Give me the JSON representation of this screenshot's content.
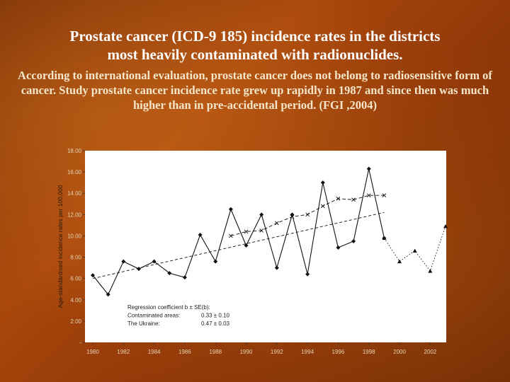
{
  "slide": {
    "title_line1": "Prostate cancer (ICD-9 185) incidence rates in the districts",
    "title_line2": "most heavily contaminated with radionuclides.",
    "subtitle": "According to international evaluation, prostate cancer does not belong to radiosensitive form of cancer. Study prostate cancer incidence rate grew up rapidly in 1987 and since then was much higher than in pre-accidental period. (FGI ,2004)"
  },
  "chart_data": {
    "type": "line",
    "ylabel": "Age-standardised incidence rates per 100,000",
    "xlim": [
      1980,
      2003
    ],
    "ylim": [
      0,
      18
    ],
    "y_ticks": [
      0,
      2,
      4,
      6,
      8,
      10,
      12,
      14,
      16,
      18
    ],
    "y_tick_labels": [
      "-",
      "2.00",
      "4.00",
      "6.00",
      "8.00",
      "10.00",
      "12.00",
      "14.00",
      "16.00",
      "18.00"
    ],
    "x_ticks": [
      1980,
      1982,
      1984,
      1986,
      1988,
      1990,
      1992,
      1994,
      1996,
      1998,
      2000,
      2002
    ],
    "series": [
      {
        "name": "Contaminated areas",
        "style": "solid-diamond",
        "x": [
          1980,
          1981,
          1982,
          1983,
          1984,
          1985,
          1986,
          1987,
          1988,
          1989,
          1990,
          1991,
          1992,
          1993,
          1994,
          1995,
          1996,
          1997,
          1998,
          1999
        ],
        "values": [
          6.3,
          4.5,
          7.6,
          6.9,
          7.6,
          6.5,
          6.1,
          10.1,
          7.6,
          12.5,
          9.1,
          12.0,
          7.0,
          12.0,
          6.4,
          15.0,
          8.9,
          9.5,
          16.3,
          9.8
        ]
      },
      {
        "name": "The Ukraine",
        "style": "dotted-triangle",
        "x": [
          1999,
          2000,
          2001,
          2002,
          2003
        ],
        "values": [
          9.8,
          7.6,
          8.6,
          6.7,
          10.9
        ]
      },
      {
        "style": "dashed-cross",
        "x": [
          1989,
          1990,
          1991,
          1992,
          1993,
          1994,
          1995,
          1996,
          1997,
          1998,
          1999
        ],
        "values": [
          10.0,
          10.4,
          10.5,
          11.2,
          11.8,
          12.0,
          12.8,
          13.5,
          13.4,
          13.8,
          13.8
        ]
      },
      {
        "style": "dashed-trend",
        "x": [
          1980,
          1999
        ],
        "values": [
          6.0,
          12.2
        ]
      }
    ],
    "legend": {
      "title": "Regression coefficient b ± SE(b):",
      "rows": [
        {
          "label": "Contaminated areas:",
          "value": "0.33 ± 0.10"
        },
        {
          "label": "The Ukraine:",
          "value": "0.47 ± 0.03"
        }
      ],
      "placement": "bottom-left"
    },
    "grid": false,
    "colors": {
      "plot_bg": "#ffffff",
      "line": "#111111"
    }
  }
}
